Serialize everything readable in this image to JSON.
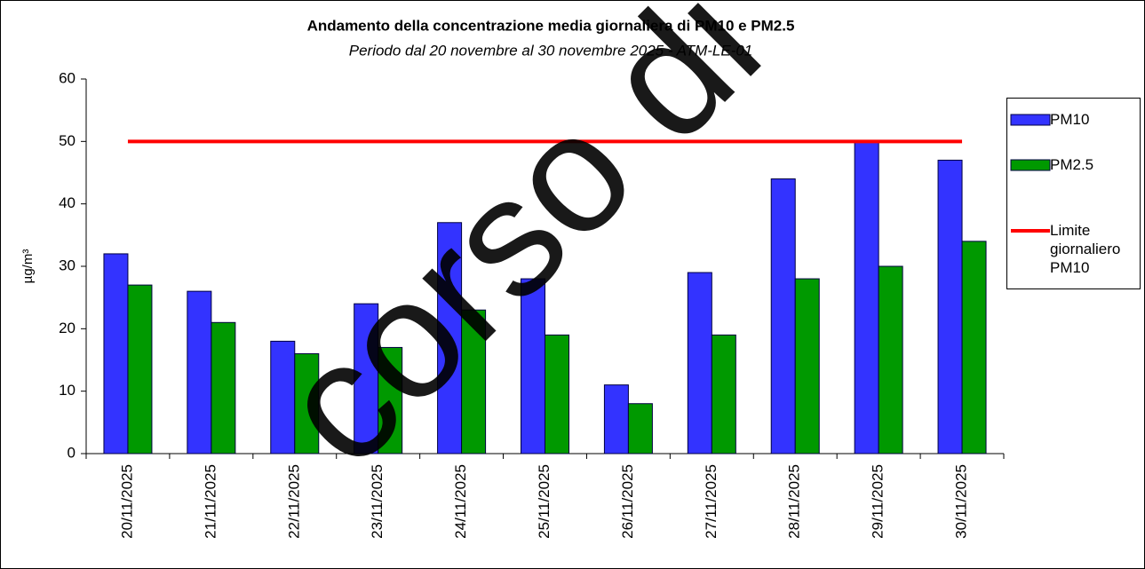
{
  "chart_data": {
    "type": "bar",
    "title": "Andamento della concentrazione media giornaliera di PM10 e PM2.5",
    "subtitle": "Periodo dal 20 novembre al 30 novembre 2025 - ATM-LE-01",
    "y_label": "µg/m³",
    "annotation": "corso di",
    "categories": [
      "20/11/2025",
      "21/11/2025",
      "22/11/2025",
      "23/11/2025",
      "24/11/2025",
      "25/11/2025",
      "26/11/2025",
      "27/11/2025",
      "28/11/2025",
      "29/11/2025",
      "30/11/2025"
    ],
    "series": [
      {
        "name": "PM10",
        "type": "bar",
        "color": "#3333ff",
        "values": [
          32,
          26,
          18,
          24,
          37,
          28,
          11,
          29,
          44,
          50,
          47
        ]
      },
      {
        "name": "PM2.5",
        "type": "bar",
        "color": "#009900",
        "values": [
          27,
          21,
          16,
          17,
          23,
          19,
          8,
          19,
          28,
          30,
          34
        ]
      },
      {
        "name": "Limite giornaliero PM10",
        "type": "line",
        "color": "#ff0000",
        "values": [
          50,
          50,
          50,
          50,
          50,
          50,
          50,
          50,
          50,
          50,
          50
        ]
      }
    ],
    "ylim": [
      0,
      60
    ],
    "yticks": [
      0,
      10,
      20,
      30,
      40,
      50,
      60
    ],
    "legend": "right"
  }
}
